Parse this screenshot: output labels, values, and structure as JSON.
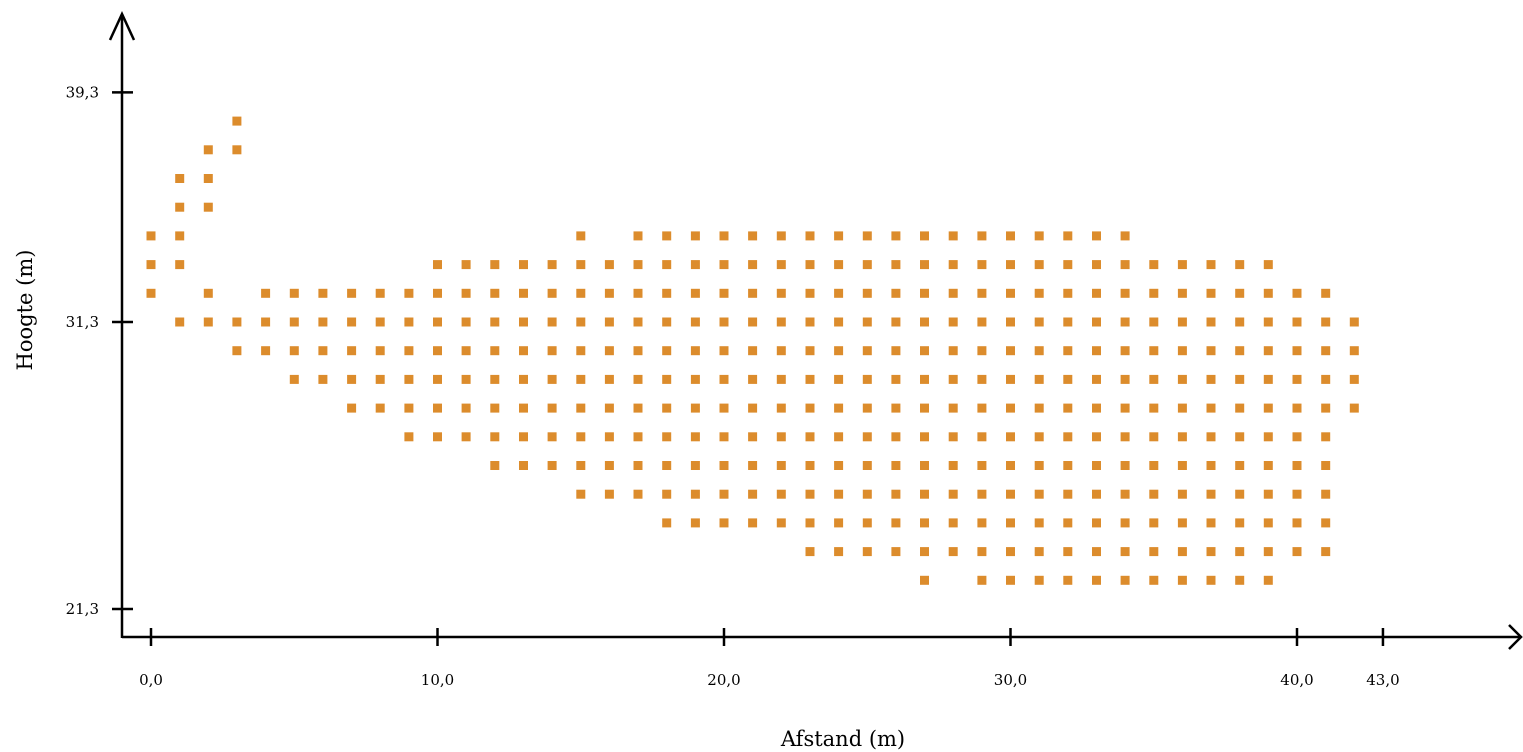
{
  "chart_data": {
    "type": "scatter",
    "title": "",
    "xlabel": "Afstand (m)",
    "ylabel": "Hoogte (m)",
    "xlim": [
      -1,
      48
    ],
    "ylim": [
      20.3,
      42.1
    ],
    "x_ticks": [
      {
        "value": 0,
        "label": "0,0"
      },
      {
        "value": 10,
        "label": "10,0"
      },
      {
        "value": 20,
        "label": "20,0"
      },
      {
        "value": 30,
        "label": "30,0"
      },
      {
        "value": 40,
        "label": "40,0"
      },
      {
        "value": 43,
        "label": "43,0"
      }
    ],
    "y_ticks": [
      {
        "value": 21.3,
        "label": "21,3"
      },
      {
        "value": 31.3,
        "label": "31,3"
      },
      {
        "value": 39.3,
        "label": "39,3"
      }
    ],
    "marker": {
      "shape": "square",
      "color": "#dc8c2c"
    },
    "grid": false,
    "legend": "none",
    "rows": [
      {
        "y": 38.3,
        "x": [
          3
        ]
      },
      {
        "y": 37.3,
        "x": [
          2,
          3
        ]
      },
      {
        "y": 36.3,
        "x": [
          1,
          2
        ]
      },
      {
        "y": 35.3,
        "x": [
          1,
          2
        ]
      },
      {
        "y": 34.3,
        "x": [
          0,
          1,
          15,
          17,
          18,
          19,
          20,
          21,
          22,
          23,
          24,
          25,
          26,
          27,
          28,
          29,
          30,
          31,
          32,
          33,
          34
        ]
      },
      {
        "y": 33.3,
        "x": [
          0,
          1,
          10,
          11,
          12,
          13,
          14,
          15,
          16,
          17,
          18,
          19,
          20,
          21,
          22,
          23,
          24,
          25,
          26,
          27,
          28,
          29,
          30,
          31,
          32,
          33,
          34,
          35,
          36,
          37,
          38,
          39
        ]
      },
      {
        "y": 32.3,
        "x": [
          0,
          2,
          4,
          5,
          6,
          7,
          8,
          9,
          10,
          11,
          12,
          13,
          14,
          15,
          16,
          17,
          18,
          19,
          20,
          21,
          22,
          23,
          24,
          25,
          26,
          27,
          28,
          29,
          30,
          31,
          32,
          33,
          34,
          35,
          36,
          37,
          38,
          39,
          40,
          41
        ]
      },
      {
        "y": 31.3,
        "x": [
          1,
          2,
          3,
          4,
          5,
          6,
          7,
          8,
          9,
          10,
          11,
          12,
          13,
          14,
          15,
          16,
          17,
          18,
          19,
          20,
          21,
          22,
          23,
          24,
          25,
          26,
          27,
          28,
          29,
          30,
          31,
          32,
          33,
          34,
          35,
          36,
          37,
          38,
          39,
          40,
          41,
          42
        ]
      },
      {
        "y": 30.3,
        "x": [
          3,
          4,
          5,
          6,
          7,
          8,
          9,
          10,
          11,
          12,
          13,
          14,
          15,
          16,
          17,
          18,
          19,
          20,
          21,
          22,
          23,
          24,
          25,
          26,
          27,
          28,
          29,
          30,
          31,
          32,
          33,
          34,
          35,
          36,
          37,
          38,
          39,
          40,
          41,
          42
        ]
      },
      {
        "y": 29.3,
        "x": [
          5,
          6,
          7,
          8,
          9,
          10,
          11,
          12,
          13,
          14,
          15,
          16,
          17,
          18,
          19,
          20,
          21,
          22,
          23,
          24,
          25,
          26,
          27,
          28,
          29,
          30,
          31,
          32,
          33,
          34,
          35,
          36,
          37,
          38,
          39,
          40,
          41,
          42
        ]
      },
      {
        "y": 28.3,
        "x": [
          7,
          8,
          9,
          10,
          11,
          12,
          13,
          14,
          15,
          16,
          17,
          18,
          19,
          20,
          21,
          22,
          23,
          24,
          25,
          26,
          27,
          28,
          29,
          30,
          31,
          32,
          33,
          34,
          35,
          36,
          37,
          38,
          39,
          40,
          41,
          42
        ]
      },
      {
        "y": 27.3,
        "x": [
          9,
          10,
          11,
          12,
          13,
          14,
          15,
          16,
          17,
          18,
          19,
          20,
          21,
          22,
          23,
          24,
          25,
          26,
          27,
          28,
          29,
          30,
          31,
          32,
          33,
          34,
          35,
          36,
          37,
          38,
          39,
          40,
          41
        ]
      },
      {
        "y": 26.3,
        "x": [
          12,
          13,
          14,
          15,
          16,
          17,
          18,
          19,
          20,
          21,
          22,
          23,
          24,
          25,
          26,
          27,
          28,
          29,
          30,
          31,
          32,
          33,
          34,
          35,
          36,
          37,
          38,
          39,
          40,
          41
        ]
      },
      {
        "y": 25.3,
        "x": [
          15,
          16,
          17,
          18,
          19,
          20,
          21,
          22,
          23,
          24,
          25,
          26,
          27,
          28,
          29,
          30,
          31,
          32,
          33,
          34,
          35,
          36,
          37,
          38,
          39,
          40,
          41
        ]
      },
      {
        "y": 24.3,
        "x": [
          18,
          19,
          20,
          21,
          22,
          23,
          24,
          25,
          26,
          27,
          28,
          29,
          30,
          31,
          32,
          33,
          34,
          35,
          36,
          37,
          38,
          39,
          40,
          41
        ]
      },
      {
        "y": 23.3,
        "x": [
          23,
          24,
          25,
          26,
          27,
          28,
          29,
          30,
          31,
          32,
          33,
          34,
          35,
          36,
          37,
          38,
          39,
          40,
          41
        ]
      },
      {
        "y": 22.3,
        "x": [
          27,
          29,
          30,
          31,
          32,
          33,
          34,
          35,
          36,
          37,
          38,
          39
        ]
      }
    ]
  }
}
